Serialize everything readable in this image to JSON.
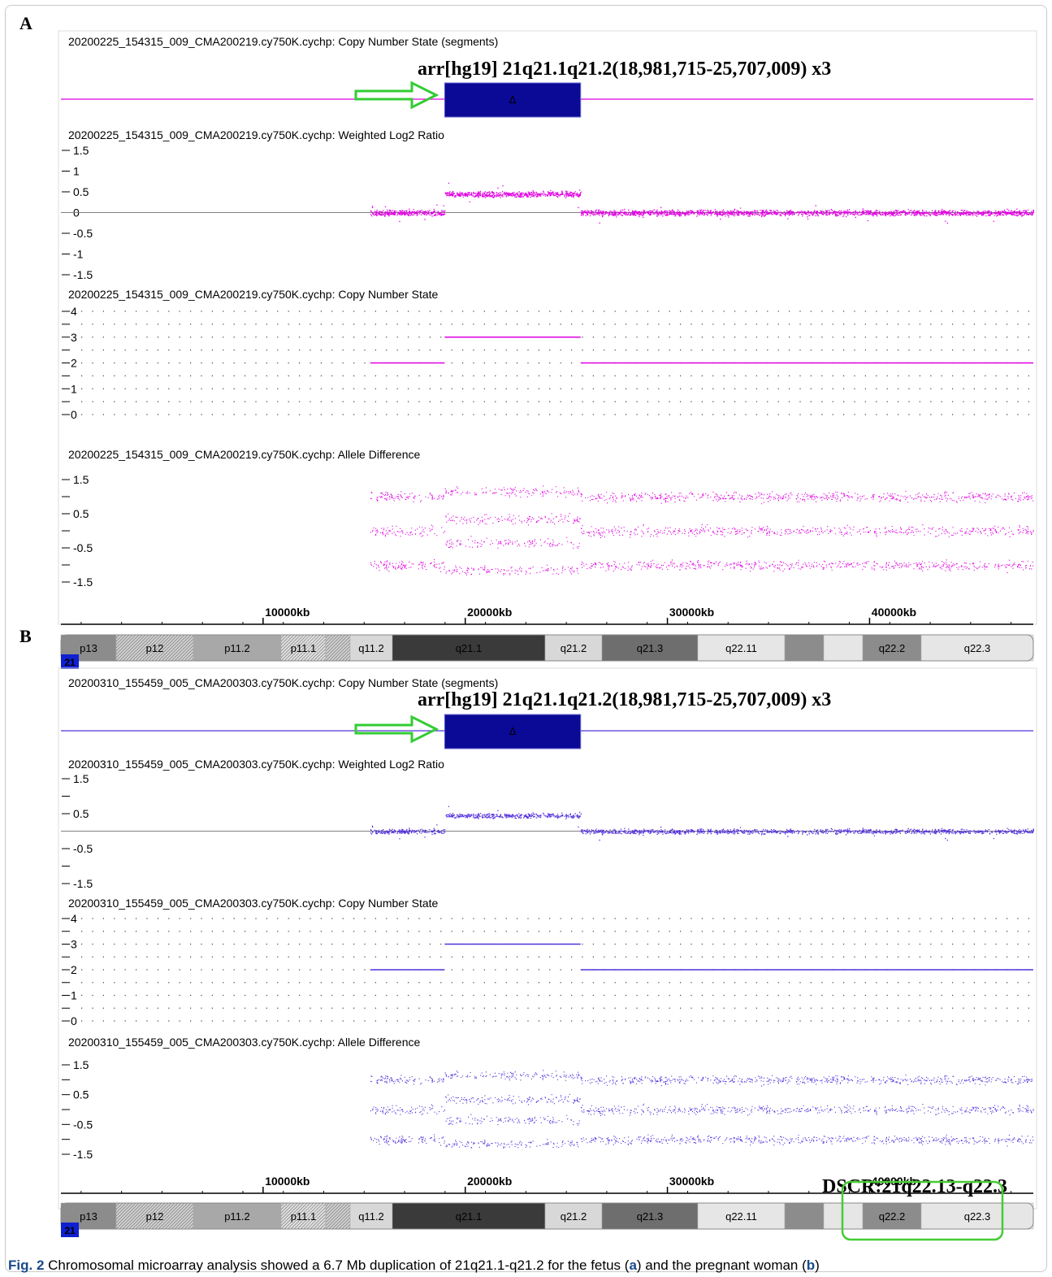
{
  "panels": [
    {
      "label": "A",
      "segments_title": "20200225_154315_009_CMA200219.cy750K.cychp: Copy Number State (segments)",
      "annotation": "arr[hg19] 21q21.1q21.2(18,981,715-25,707,009) x3",
      "gain_symbol": "Δ",
      "log2_title": "20200225_154315_009_CMA200219.cy750K.cychp: Weighted Log2 Ratio",
      "cn_title": "20200225_154315_009_CMA200219.cy750K.cychp: Copy Number State",
      "ad_title": "20200225_154315_009_CMA200219.cy750K.cychp: Allele Difference",
      "log2_ticks": [
        "1.5",
        "1",
        "0.5",
        "0",
        "-0.5",
        "-1",
        "-1.5"
      ],
      "cn_ticks": [
        "4",
        "3",
        "2",
        "1",
        "0"
      ],
      "ad_ticks": [
        "1.5",
        "0.5",
        "-0.5",
        "-1.5"
      ],
      "color": "#e000e0"
    },
    {
      "label": "B",
      "segments_title": "20200310_155459_005_CMA200303.cy750K.cychp: Copy Number State (segments)",
      "annotation": "arr[hg19] 21q21.1q21.2(18,981,715-25,707,009) x3",
      "gain_symbol": "Δ",
      "log2_title": "20200310_155459_005_CMA200303.cy750K.cychp: Weighted Log2 Ratio",
      "cn_title": "20200310_155459_005_CMA200303.cy750K.cychp: Copy Number State",
      "ad_title": "20200310_155459_005_CMA200303.cy750K.cychp: Allele Difference",
      "log2_ticks": [
        "1.5",
        "",
        "0.5",
        "",
        "-0.5",
        "",
        "-1.5"
      ],
      "cn_ticks": [
        "4",
        "3",
        "2",
        "1",
        "0"
      ],
      "ad_ticks": [
        "1.5",
        "0.5",
        "-0.5",
        "-1.5"
      ],
      "color": "#5533dd"
    }
  ],
  "axis_ticks": [
    "10000kb",
    "20000kb",
    "30000kb",
    "40000kb"
  ],
  "chromosome_number": "21",
  "bands": [
    "p13",
    "p12",
    "p11.2",
    "p11.1",
    "q11.2",
    "q21.1",
    "q21.2",
    "q21.3",
    "q22.11",
    "",
    "",
    "q22.2",
    "q22.3"
  ],
  "dscr_label": "DSCR:21q22.13-q22.3",
  "caption": {
    "prefix": "Fig. 2",
    "text": "  Chromosomal microarray analysis showed a 6.7 Mb duplication of 21q21.1-q21.2 for the fetus (",
    "a": "a",
    "mid": ") and the pregnant woman (",
    "b": "b",
    "end": ")"
  },
  "chart_data": {
    "type": "scatter",
    "title": "",
    "x_unit": "kb",
    "xlim": [
      0,
      48100
    ],
    "duplication": {
      "start_bp": 18981715,
      "end_bp": 25707009,
      "copy_number": 3
    },
    "baseline_copy_number": 2,
    "data_start_kb": 15300,
    "series": [
      {
        "panel": "A",
        "track": "Weighted Log2 Ratio",
        "segments": [
          {
            "x": [
              15300,
              18981
            ],
            "y": 0
          },
          {
            "x": [
              18981,
              25707
            ],
            "y": 0.45
          },
          {
            "x": [
              25707,
              48100
            ],
            "y": 0
          }
        ]
      },
      {
        "panel": "A",
        "track": "Copy Number State",
        "segments": [
          {
            "x": [
              15300,
              18981
            ],
            "y": 2
          },
          {
            "x": [
              18981,
              25707
            ],
            "y": 3
          },
          {
            "x": [
              25707,
              48100
            ],
            "y": 2
          }
        ]
      },
      {
        "panel": "B",
        "track": "Weighted Log2 Ratio",
        "segments": [
          {
            "x": [
              15300,
              18981
            ],
            "y": 0
          },
          {
            "x": [
              18981,
              25707
            ],
            "y": 0.45
          },
          {
            "x": [
              25707,
              48100
            ],
            "y": 0
          }
        ]
      },
      {
        "panel": "B",
        "track": "Copy Number State",
        "segments": [
          {
            "x": [
              15300,
              18981
            ],
            "y": 2
          },
          {
            "x": [
              18981,
              25707
            ],
            "y": 3
          },
          {
            "x": [
              25707,
              48100
            ],
            "y": 2
          }
        ]
      }
    ]
  }
}
